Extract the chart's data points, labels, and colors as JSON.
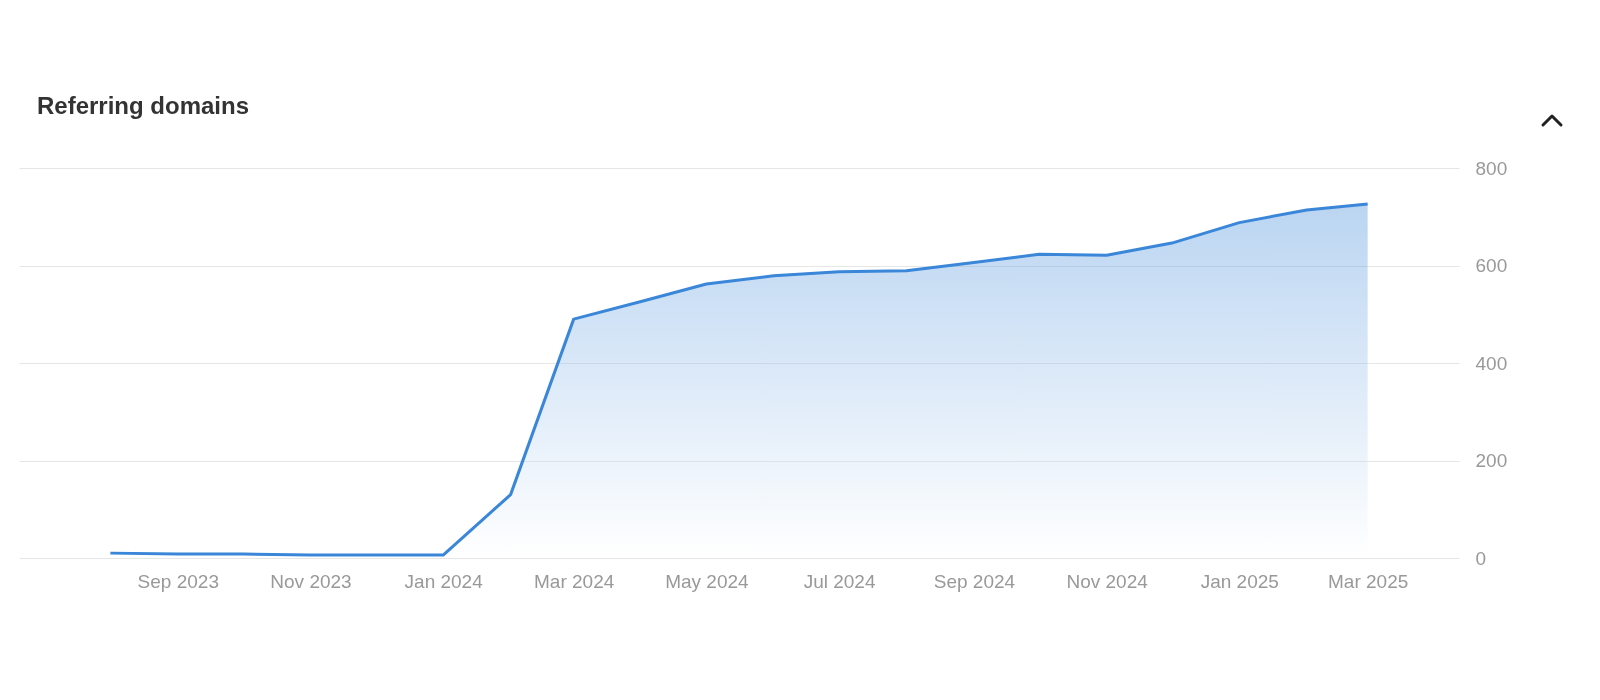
{
  "chart_data": {
    "type": "area",
    "title": "Referring domains",
    "color": "#3a86d8",
    "x": [
      "2023-08",
      "2023-09",
      "2023-10",
      "2023-11",
      "2023-12",
      "2024-01",
      "2024-02",
      "2024-03",
      "2024-04",
      "2024-05",
      "2024-06",
      "2024-07",
      "2024-08",
      "2024-09",
      "2024-10",
      "2024-11",
      "2024-12",
      "2025-01",
      "2025-02",
      "2025-03"
    ],
    "values": [
      10,
      8,
      8,
      6,
      6,
      6,
      130,
      490,
      526,
      562,
      579,
      587,
      589,
      606,
      623,
      621,
      646,
      688,
      714,
      726
    ],
    "xlim": [
      "2023-06-20",
      "2025-04-12"
    ],
    "xticks": [
      {
        "value": "2023-09",
        "label": "Sep 2023"
      },
      {
        "value": "2023-11",
        "label": "Nov 2023"
      },
      {
        "value": "2024-01",
        "label": "Jan 2024"
      },
      {
        "value": "2024-03",
        "label": "Mar 2024"
      },
      {
        "value": "2024-05",
        "label": "May 2024"
      },
      {
        "value": "2024-07",
        "label": "Jul 2024"
      },
      {
        "value": "2024-09",
        "label": "Sep 2024"
      },
      {
        "value": "2024-11",
        "label": "Nov 2024"
      },
      {
        "value": "2025-01",
        "label": "Jan 2025"
      },
      {
        "value": "2025-03",
        "label": "Mar 2025"
      }
    ],
    "ylim": [
      0,
      800
    ],
    "yticks": [
      0,
      200,
      400,
      600,
      800
    ],
    "grid": "y"
  }
}
